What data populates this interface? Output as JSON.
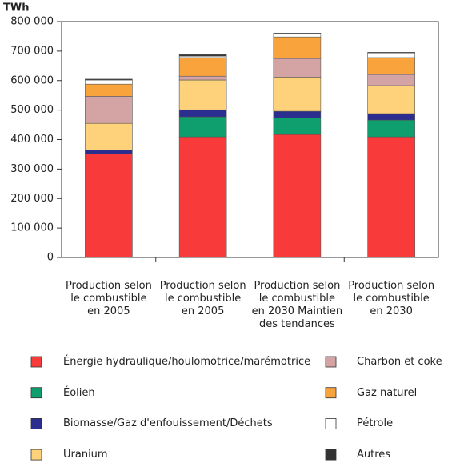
{
  "chart_data": {
    "type": "stacked-bar",
    "y_label": "TWh",
    "categories": [
      "Production selon le combustible en 2005",
      "Production selon le combustible en 2005",
      "Production selon le combustible en 2030 Maintien des tendances",
      "Production selon le combustible en 2030"
    ],
    "series": [
      {
        "name": "Énergie hydraulique/houlomotrice/marémotrice",
        "color": "#f93a3a",
        "values": [
          352000,
          409000,
          417000,
          409000
        ]
      },
      {
        "name": "Éolien",
        "color": "#0f9e6e",
        "values": [
          0,
          68000,
          57000,
          57000
        ]
      },
      {
        "name": "Biomasse/Gaz d'enfouissement/Déchets",
        "color": "#2b2d8f",
        "values": [
          13000,
          24000,
          22000,
          22000
        ]
      },
      {
        "name": "Uranium",
        "color": "#fdd27a",
        "values": [
          90000,
          101000,
          116000,
          95000
        ]
      },
      {
        "name": "Charbon et coke",
        "color": "#d4a4a4",
        "values": [
          92000,
          13000,
          63000,
          38000
        ]
      },
      {
        "name": "Gaz naturel",
        "color": "#f9a33c",
        "values": [
          41000,
          63000,
          73000,
          57000
        ]
      },
      {
        "name": "Pétrole",
        "color": "#ffffff",
        "values": [
          14000,
          5000,
          11000,
          16000
        ]
      },
      {
        "name": "Autres",
        "color": "#333333",
        "values": [
          3000,
          5000,
          2000,
          2000
        ]
      }
    ],
    "ylim": [
      0,
      800000
    ],
    "yticks": [
      {
        "value": 0,
        "label": "0"
      },
      {
        "value": 100000,
        "label": "100 000"
      },
      {
        "value": 200000,
        "label": "200 000"
      },
      {
        "value": 300000,
        "label": "300 000"
      },
      {
        "value": 400000,
        "label": "400 000"
      },
      {
        "value": 500000,
        "label": "500 000"
      },
      {
        "value": 600000,
        "label": "600 000"
      },
      {
        "value": 700000,
        "label": "700 000"
      },
      {
        "value": 800000,
        "label": "800 000"
      }
    ]
  }
}
